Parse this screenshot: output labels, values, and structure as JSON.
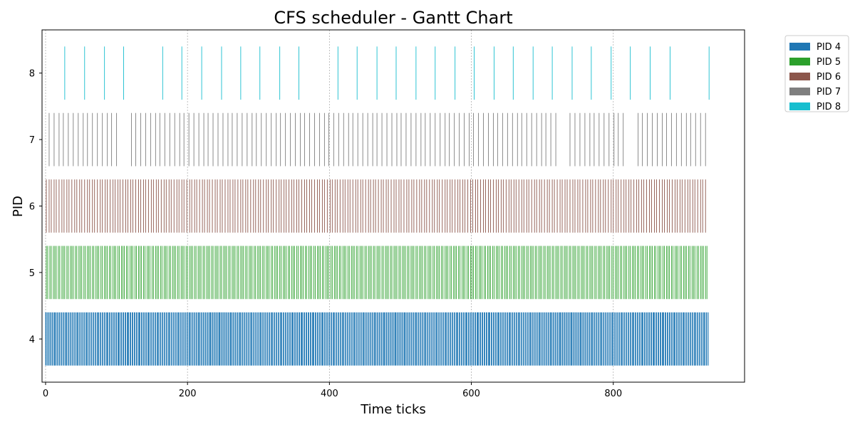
{
  "chart_data": {
    "type": "gantt",
    "title": "CFS scheduler - Gantt Chart",
    "xlabel": "Time ticks",
    "ylabel": "PID",
    "xlim": [
      -5,
      985
    ],
    "ylim": [
      3.35,
      8.65
    ],
    "xticks": [
      0,
      200,
      400,
      600,
      800
    ],
    "yticks": [
      4,
      5,
      6,
      7,
      8
    ],
    "grid": {
      "x": true,
      "y": false,
      "style": "dotted"
    },
    "legend_position": "outside top-right",
    "series": [
      {
        "name": "PID 4",
        "pid": 4,
        "color": "#1f77b4",
        "every": 1.45,
        "start": 0,
        "end": 934,
        "gaps": []
      },
      {
        "name": "PID 5",
        "pid": 5,
        "color": "#2ca02c",
        "every": 2.4,
        "start": 1,
        "end": 934,
        "gaps": []
      },
      {
        "name": "PID 6",
        "pid": 6,
        "color": "#8c564b",
        "every": 3.6,
        "start": 1,
        "end": 933,
        "gaps": []
      },
      {
        "name": "PID 7",
        "pid": 7,
        "color": "#7f7f7f",
        "every": 6.8,
        "start": 5,
        "end": 930,
        "gaps": [
          [
            106,
            118
          ],
          [
            722,
            736
          ],
          [
            819,
            835
          ]
        ]
      },
      {
        "name": "PID 8",
        "pid": 8,
        "times": [
          27,
          55,
          83,
          110,
          165,
          192,
          220,
          248,
          275,
          302,
          330,
          357,
          412,
          439,
          467,
          494,
          522,
          549,
          577,
          604,
          632,
          659,
          687,
          714,
          742,
          769,
          797,
          824,
          852,
          880,
          935
        ],
        "color": "#17becf"
      }
    ]
  }
}
